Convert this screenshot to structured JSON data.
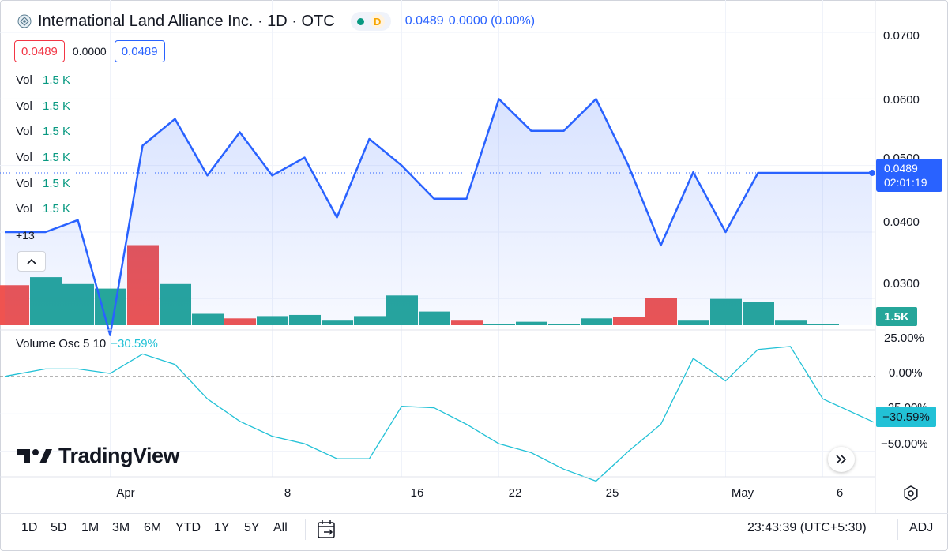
{
  "header": {
    "title": "International Land Alliance Inc. · 1D · OTC",
    "badge_letter": "D",
    "price": "0.0489",
    "change": "0.0000 (0.00%)"
  },
  "quote": {
    "bid": "0.0489",
    "spread": "0.0000",
    "ask": "0.0489"
  },
  "volume_legends": [
    {
      "label": "Vol",
      "value": "1.5 K"
    },
    {
      "label": "Vol",
      "value": "1.5 K"
    },
    {
      "label": "Vol",
      "value": "1.5 K"
    },
    {
      "label": "Vol",
      "value": "1.5 K"
    },
    {
      "label": "Vol",
      "value": "1.5 K"
    },
    {
      "label": "Vol",
      "value": "1.5 K"
    }
  ],
  "more_indicators": "+13",
  "osc_legend": {
    "name": "Volume Osc 5 10",
    "value": "−30.59%"
  },
  "price_tag": {
    "price": "0.0489",
    "countdown": "02:01:19"
  },
  "volume_tag": "1.5K",
  "osc_tag": "−30.59%",
  "brand": "TradingView",
  "ranges": [
    "1D",
    "5D",
    "1M",
    "3M",
    "6M",
    "YTD",
    "1Y",
    "5Y",
    "All"
  ],
  "time": "23:43:39 (UTC+5:30)",
  "adj": "ADJ",
  "colors": {
    "line": "#2962ff",
    "up": "#26a69a",
    "down": "#ef5350",
    "osc": "#22c1d6"
  },
  "chart_data": {
    "type": "line",
    "price": {
      "y_ticks": [
        "0.0700",
        "0.0600",
        "0.0500",
        "0.0400",
        "0.0300"
      ],
      "ylim": [
        0.026,
        0.0725
      ],
      "values": [
        0.04,
        0.04,
        0.0418,
        0.0245,
        0.053,
        0.057,
        0.0485,
        0.055,
        0.0485,
        0.0512,
        0.0422,
        0.054,
        0.05,
        0.045,
        0.045,
        0.06,
        0.0552,
        0.0552,
        0.06,
        0.05,
        0.038,
        0.049,
        0.04,
        0.0489,
        0.0489,
        0.0489,
        0.0489
      ],
      "last_value": 0.0489
    },
    "volume": {
      "values": [
        0.35,
        0.42,
        0.36,
        0.32,
        0.7,
        0.36,
        0.1,
        0.06,
        0.08,
        0.09,
        0.04,
        0.08,
        0.26,
        0.12,
        0.04,
        0.01,
        0.03,
        0.01,
        0.06,
        0.07,
        0.24,
        0.04,
        0.23,
        0.2,
        0.04,
        0.01,
        0.2
      ],
      "direction": [
        "down",
        "up",
        "up",
        "up",
        "down",
        "up",
        "up",
        "down",
        "up",
        "up",
        "up",
        "up",
        "up",
        "up",
        "down",
        "up",
        "up",
        "up",
        "up",
        "down",
        "down",
        "up",
        "up",
        "up",
        "up",
        "up",
        "up"
      ]
    },
    "oscillator": {
      "y_ticks": [
        "25.00%",
        "0.00%",
        "−25.00%",
        "−50.00%"
      ],
      "ylim": [
        -65,
        30
      ],
      "values": [
        0,
        5,
        5,
        2,
        15,
        8,
        -15,
        -30,
        -40,
        -45,
        -55,
        -55,
        -20,
        -21,
        -32,
        -45,
        -51,
        -62,
        -70,
        -50,
        -32,
        12,
        -3,
        18,
        20,
        -15,
        -30.59
      ]
    },
    "x_ticks": [
      {
        "label": "Apr",
        "index": 3.5
      },
      {
        "label": "8",
        "index": 8.5
      },
      {
        "label": "16",
        "index": 12.5
      },
      {
        "label": "22",
        "index": 15.5
      },
      {
        "label": "25",
        "index": 18.5
      },
      {
        "label": "May",
        "index": 22.5
      },
      {
        "label": "6",
        "index": 25.5
      }
    ]
  }
}
